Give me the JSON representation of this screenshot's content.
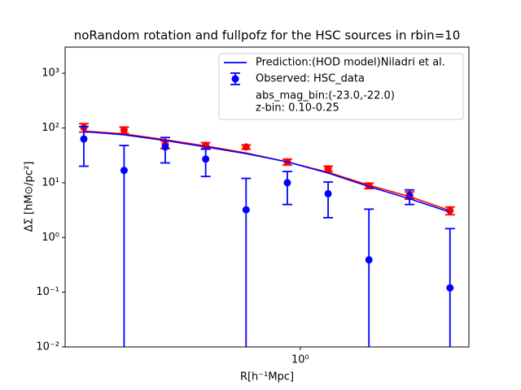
{
  "chart_data": {
    "type": "errorbar",
    "title": "noRandom rotation and fullpofz for the HSC sources in rbin=10",
    "x_label": "R[h⁻¹Mpc]",
    "y_label": "ΔΣ [hM⊙/pc²]",
    "x_scale": "log",
    "y_scale": "log",
    "x": [
      0.13,
      0.19,
      0.28,
      0.41,
      0.6,
      0.885,
      1.3,
      1.91,
      2.8,
      4.1
    ],
    "xlim": [
      0.109,
      4.9
    ],
    "ylim": [
      0.01,
      3000
    ],
    "xticks": [
      {
        "value": 1,
        "label": "10⁰"
      }
    ],
    "yticks": [
      {
        "value": 0.01,
        "label": "10⁻²"
      },
      {
        "value": 0.1,
        "label": "10⁻¹"
      },
      {
        "value": 1,
        "label": "10⁰"
      },
      {
        "value": 10,
        "label": "10¹"
      },
      {
        "value": 100,
        "label": "10²"
      },
      {
        "value": 1000,
        "label": "10³"
      }
    ],
    "lines": [
      {
        "name": "Prediction:(HOD model)Niladri et al.",
        "color": "#0000ff",
        "values": [
          86,
          75,
          59,
          45,
          34,
          24,
          15,
          8.5,
          5.1,
          2.9
        ]
      },
      {
        "color": "#ff0000",
        "values": [
          88,
          78,
          61,
          47,
          35,
          24,
          15.5,
          9,
          5.6,
          3.1
        ]
      }
    ],
    "series": [
      {
        "name": "Observed: HSC_data",
        "color": "#0000ff",
        "values": [
          63,
          16.8,
          45,
          27,
          3.2,
          10,
          6.3,
          0.39,
          5.7,
          0.12
        ],
        "errors": [
          43,
          31,
          22,
          14,
          8.8,
          6,
          4,
          2.9,
          1.7,
          1.33
        ]
      },
      {
        "color": "#ff0000",
        "values": [
          102,
          92,
          50,
          48,
          45,
          24,
          18,
          8.8,
          5.9,
          3.1
        ],
        "errors": [
          18,
          12,
          8,
          6,
          4,
          3,
          2,
          1,
          0.9,
          0.5
        ]
      }
    ],
    "annotations": [
      "abs_mag_bin:(-23.0,-22.0)",
      "z-bin: 0.10-0.25"
    ],
    "legend": "upper right"
  }
}
